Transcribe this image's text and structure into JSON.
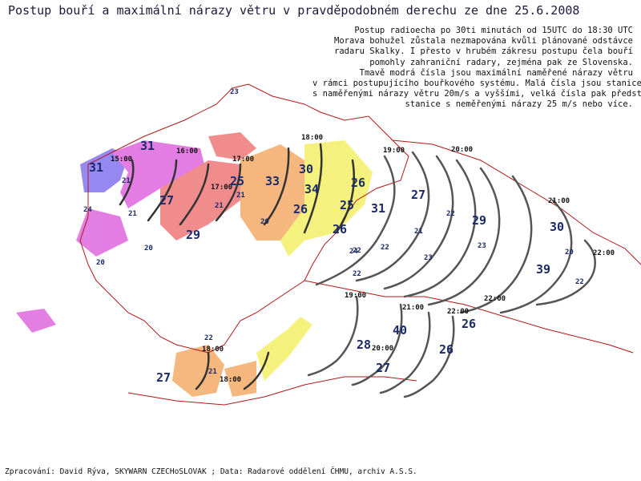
{
  "title": "Postup bouří a maximální nárazy větru v pravděpodobném derechu ze dne 25.6.2008",
  "notes": [
    "Postup radioecha po 30ti minutách od 15UTC do 18:30 UTC",
    "Morava bohužel zůstala nezmapována kvůli plánované odstávce",
    "radaru Skalky. I přesto v hrubém zákresu postupu čela bouří",
    "pomohly zahraniční radary, zejména pak ze Slovenska.",
    "Tmavě modrá čísla jsou maximální naměřené nárazy větru",
    "v rámci postupujícího bouřkového systému. Malá čísla jsou stanice",
    "s naměřenými nárazy větru 20m/s a vyššími, velká čísla pak představují",
    "stanice s neměřenými nárazy 25 m/s nebo více."
  ],
  "credit": "Zpracování: David Rýva, SKYWARN CZECHoSLOVAK ; Data: Radarové oddělení ČHMU, archiv A.S.S.",
  "colors": {
    "border": "#b01818",
    "radar_violet": "#8c7cf0",
    "radar_magenta": "#e070e0",
    "radar_pink": "#f08080",
    "radar_orange": "#f4b070",
    "radar_yellow": "#f4f070",
    "front_line": "#555555",
    "gust_text": "#1a2a6a"
  },
  "time_labels": [
    "15:00",
    "16:00",
    "17:00",
    "17:00",
    "18:00",
    "19:00",
    "20:00",
    "21:00",
    "22:00",
    "19:00",
    "21:00",
    "22:00",
    "22:00",
    "20:00",
    "18:00",
    "18:00"
  ],
  "gusts_large": [
    "31",
    "31",
    "27",
    "29",
    "25",
    "33",
    "30",
    "34",
    "26",
    "26",
    "25",
    "26",
    "31",
    "27",
    "29",
    "30",
    "39",
    "40",
    "26",
    "28",
    "26",
    "27",
    "27"
  ],
  "gusts_small": [
    "23",
    "21",
    "21",
    "24",
    "20",
    "20",
    "21",
    "21",
    "20",
    "22",
    "24",
    "22",
    "22",
    "21",
    "23",
    "22",
    "23",
    "20",
    "22",
    "22",
    "21"
  ]
}
